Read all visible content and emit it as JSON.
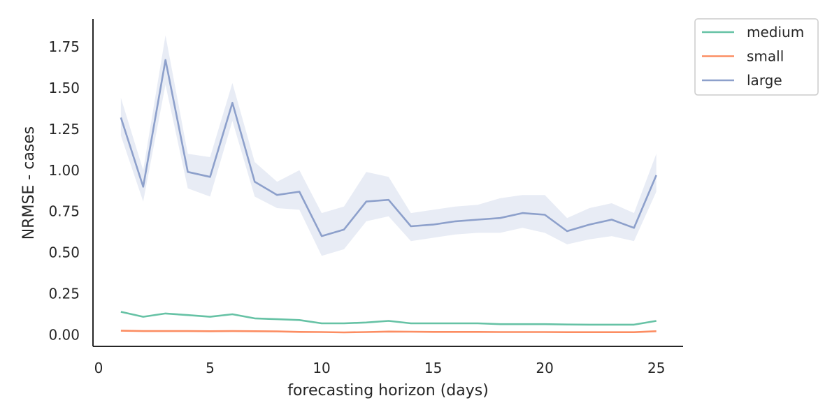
{
  "chart_data": {
    "type": "line",
    "title": "",
    "xlabel": "forecasting horizon (days)",
    "ylabel": "NRMSE - cases",
    "xlim": [
      -0.25,
      26.2
    ],
    "ylim": [
      -0.07,
      1.92
    ],
    "xticks": [
      0,
      5,
      10,
      15,
      20,
      25
    ],
    "xtick_labels": [
      "0",
      "5",
      "10",
      "15",
      "20",
      "25"
    ],
    "yticks": [
      0.0,
      0.25,
      0.5,
      0.75,
      1.0,
      1.25,
      1.5,
      1.75
    ],
    "ytick_labels": [
      "0.00",
      "0.25",
      "0.50",
      "0.75",
      "1.00",
      "1.25",
      "1.50",
      "1.75"
    ],
    "grid": false,
    "legend_position": "outside top-right",
    "x": [
      1,
      2,
      3,
      4,
      5,
      6,
      7,
      8,
      9,
      10,
      11,
      12,
      13,
      14,
      15,
      16,
      17,
      18,
      19,
      20,
      21,
      22,
      23,
      24,
      25
    ],
    "series": [
      {
        "name": "medium",
        "color": "#66c2a5",
        "values": [
          0.14,
          0.11,
          0.13,
          0.12,
          0.11,
          0.125,
          0.1,
          0.095,
          0.09,
          0.07,
          0.07,
          0.075,
          0.085,
          0.07,
          0.07,
          0.07,
          0.07,
          0.065,
          0.065,
          0.065,
          0.063,
          0.062,
          0.062,
          0.062,
          0.085
        ]
      },
      {
        "name": "small",
        "color": "#fc8d62",
        "values": [
          0.025,
          0.023,
          0.023,
          0.023,
          0.022,
          0.023,
          0.022,
          0.021,
          0.018,
          0.017,
          0.015,
          0.017,
          0.02,
          0.019,
          0.018,
          0.018,
          0.018,
          0.017,
          0.017,
          0.017,
          0.016,
          0.016,
          0.016,
          0.016,
          0.022
        ]
      },
      {
        "name": "large",
        "color": "#8da0cb",
        "values": [
          1.32,
          0.9,
          1.67,
          0.99,
          0.96,
          1.41,
          0.93,
          0.85,
          0.87,
          0.6,
          0.64,
          0.81,
          0.82,
          0.66,
          0.67,
          0.69,
          0.7,
          0.71,
          0.74,
          0.73,
          0.63,
          0.67,
          0.7,
          0.65,
          0.97
        ],
        "ci_lower": [
          1.21,
          0.81,
          1.52,
          0.89,
          0.84,
          1.3,
          0.84,
          0.77,
          0.76,
          0.48,
          0.52,
          0.69,
          0.72,
          0.57,
          0.59,
          0.61,
          0.62,
          0.62,
          0.65,
          0.62,
          0.55,
          0.58,
          0.6,
          0.57,
          0.87
        ],
        "ci_upper": [
          1.44,
          1.0,
          1.82,
          1.1,
          1.08,
          1.53,
          1.05,
          0.93,
          1.0,
          0.74,
          0.78,
          0.99,
          0.96,
          0.74,
          0.76,
          0.78,
          0.79,
          0.83,
          0.85,
          0.85,
          0.71,
          0.77,
          0.8,
          0.74,
          1.1
        ]
      }
    ]
  }
}
